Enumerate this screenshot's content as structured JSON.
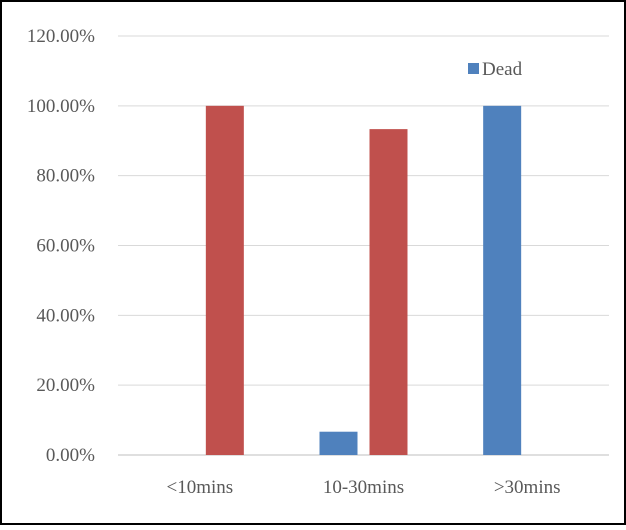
{
  "chart_data": {
    "type": "bar",
    "categories": [
      "<10mins",
      "10-30mins",
      ">30mins"
    ],
    "series": [
      {
        "name": "Dead",
        "color": "#4f81bd",
        "values": [
          0,
          6.67,
          100
        ]
      },
      {
        "color": "#c0504d",
        "values": [
          100,
          93.33,
          0
        ]
      }
    ],
    "ylim": [
      0,
      120
    ],
    "yticks": [
      0,
      20,
      40,
      60,
      80,
      100,
      120
    ],
    "ytick_labels": [
      "0.00%",
      "20.00%",
      "40.00%",
      "60.00%",
      "80.00%",
      "100.00%",
      "120.00%"
    ],
    "grid": true,
    "legend_position": "top-right",
    "colors": {
      "grid": "#d9d9d9",
      "axis": "#bfbfbf",
      "border": "#000000",
      "text": "#595959"
    }
  }
}
